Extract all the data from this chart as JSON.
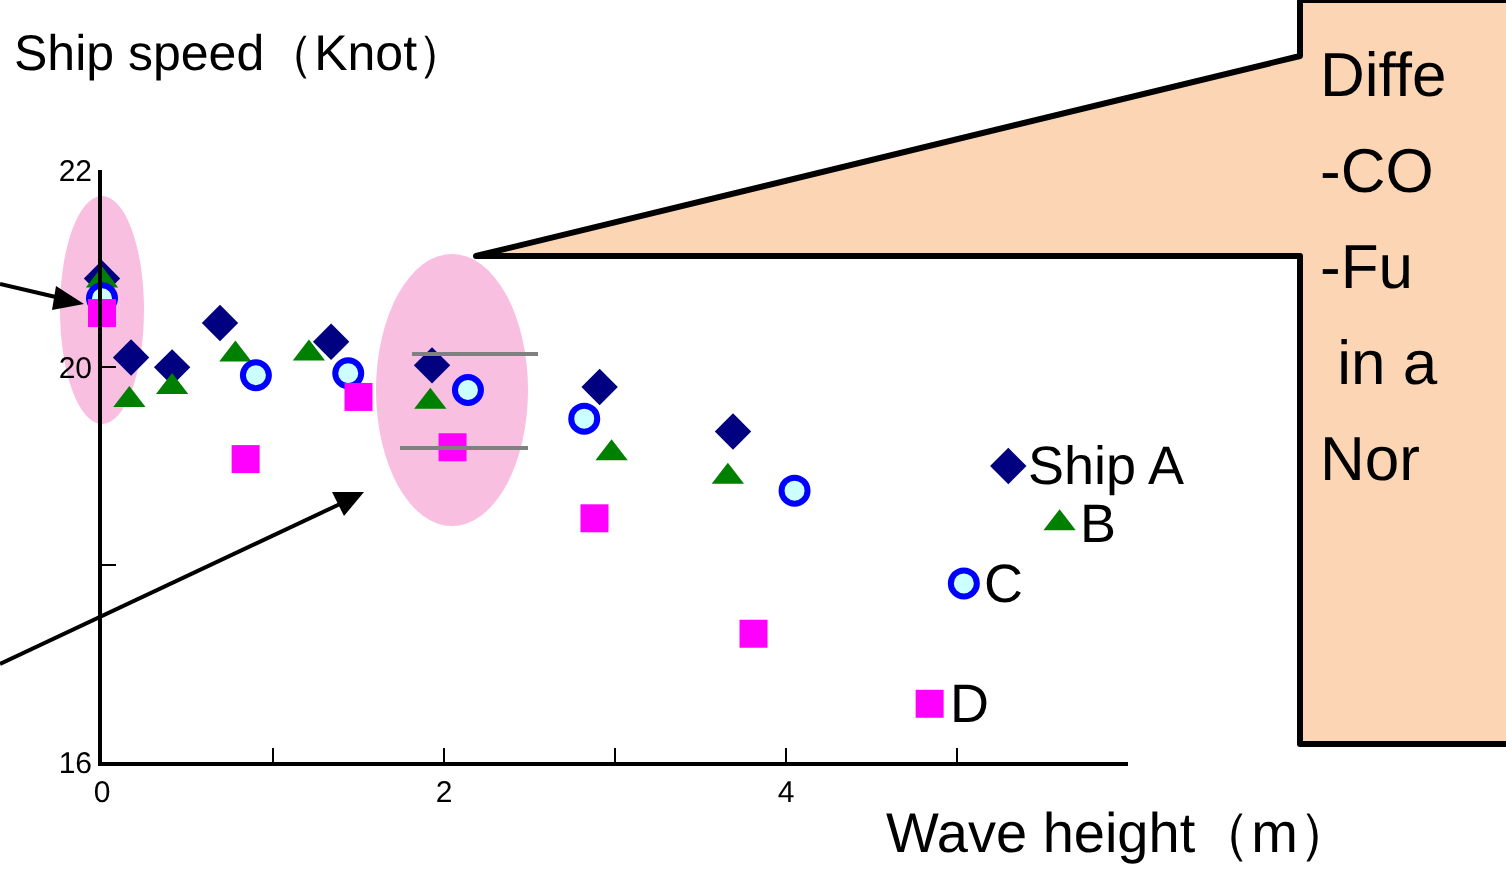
{
  "chart_data": {
    "type": "scatter",
    "xlabel": "Wave height（m）",
    "ylabel": "Ship speed（Knot）",
    "xlim": [
      0,
      6
    ],
    "xticks": [
      0,
      {
        "value": 1,
        "label": null
      },
      2,
      {
        "value": 3,
        "label": null
      },
      4,
      {
        "value": 5,
        "label": null
      }
    ],
    "ylim": [
      16,
      22
    ],
    "yticks": [
      16,
      {
        "value": 18,
        "label": null
      },
      20,
      22
    ],
    "grid": false,
    "legend": false,
    "annotations": [
      "Diffe\n-CO\n-Fu\n in a\nNor"
    ],
    "series": [
      {
        "name": "Ship A",
        "color": "#000080",
        "marker": "diamond",
        "x": [
          0,
          0.17,
          0.41,
          0.69,
          1.34,
          1.93,
          2.91,
          3.69,
          5.3
        ],
        "values": [
          20.9,
          20.1,
          20.0,
          20.45,
          20.26,
          20.02,
          19.8,
          19.35,
          19.0
        ]
      },
      {
        "name": "B",
        "color": "#008000",
        "marker": "triangle",
        "x": [
          0,
          0.16,
          0.41,
          0.78,
          1.21,
          1.92,
          2.98,
          3.66,
          5.6
        ],
        "values": [
          20.88,
          19.67,
          19.8,
          20.13,
          20.14,
          19.65,
          19.13,
          18.89,
          18.42
        ]
      },
      {
        "name": "C",
        "color": "#0000ff",
        "marker": "circle",
        "x": [
          0,
          0.9,
          1.44,
          2.14,
          2.82,
          4.05,
          5.04
        ],
        "values": [
          20.7,
          19.92,
          19.94,
          19.77,
          19.48,
          18.75,
          17.81
        ]
      },
      {
        "name": "D",
        "color": "#ff00ff",
        "marker": "square",
        "x": [
          0,
          0.84,
          1.5,
          2.05,
          2.88,
          3.81,
          4.84
        ],
        "values": [
          20.55,
          19.07,
          19.7,
          19.19,
          18.47,
          17.3,
          16.59
        ]
      }
    ]
  }
}
